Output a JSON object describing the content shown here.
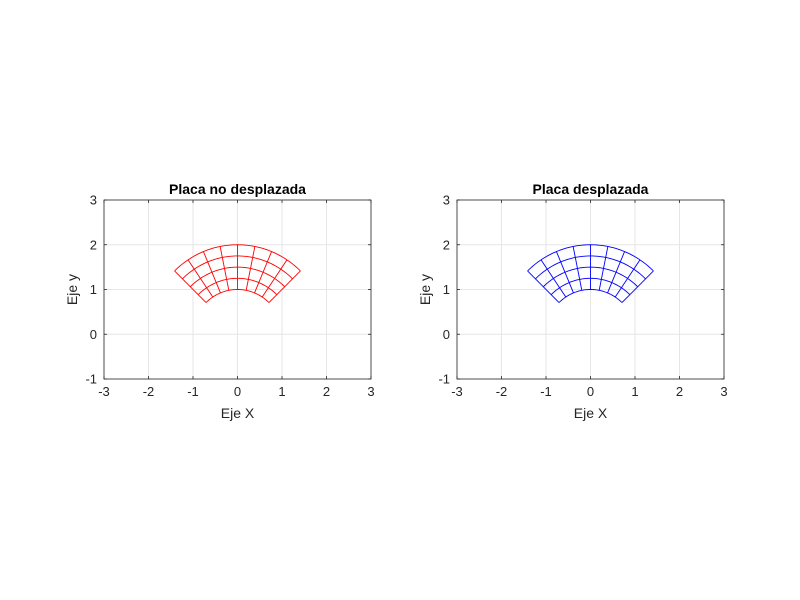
{
  "chart_data": [
    {
      "type": "mesh",
      "title": "Placa no desplazada",
      "xlabel": "Eje X",
      "ylabel": "Eje y",
      "xlim": [
        -3,
        3
      ],
      "ylim": [
        -1,
        3
      ],
      "xticks": [
        "-3",
        "-2",
        "-1",
        "0",
        "1",
        "2",
        "3"
      ],
      "yticks": [
        "-1",
        "0",
        "1",
        "2",
        "3"
      ],
      "grid": true,
      "color": "#ff0000",
      "mesh": {
        "center": [
          0,
          0
        ],
        "r_inner": 1,
        "r_outer": 2,
        "radial_divisions": 4,
        "angle_start_deg": 45,
        "angle_end_deg": 135,
        "angular_divisions": 8
      }
    },
    {
      "type": "mesh",
      "title": "Placa desplazada",
      "xlabel": "Eje X",
      "ylabel": "Eje y",
      "xlim": [
        -3,
        3
      ],
      "ylim": [
        -1,
        3
      ],
      "xticks": [
        "-3",
        "-2",
        "-1",
        "0",
        "1",
        "2",
        "3"
      ],
      "yticks": [
        "-1",
        "0",
        "1",
        "2",
        "3"
      ],
      "grid": true,
      "color": "#0000ff",
      "mesh": {
        "center": [
          0,
          0
        ],
        "r_inner": 1,
        "r_outer": 2,
        "radial_divisions": 4,
        "angle_start_deg": 45,
        "angle_end_deg": 135,
        "angular_divisions": 8
      }
    }
  ]
}
